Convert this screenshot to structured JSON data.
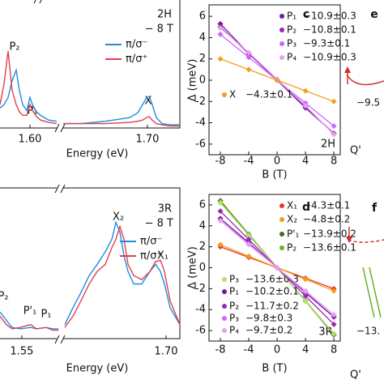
{
  "chart_data": [
    {
      "type": "line",
      "x_label": "Energy (eV)",
      "annotations": [
        "2H",
        "− 8 T",
        "P₂",
        "P₁",
        "X"
      ],
      "x": [
        1.5745,
        1.5779,
        1.5814,
        1.5848,
        1.5883,
        1.591,
        1.5938,
        1.5973,
        1.6,
        1.6021,
        1.6055,
        1.609,
        1.6159,
        1.6228,
        1.6255,
        1.6283,
        1.6435,
        1.6641,
        1.6848,
        1.6917,
        1.6959,
        1.6993,
        1.7014,
        1.7041,
        1.7076,
        1.7124,
        1.7193,
        1.7276
      ],
      "series": [
        {
          "name": "π/σ⁻",
          "color": "#1a8fe0",
          "values": [
            0.16,
            0.19,
            0.25,
            0.39,
            0.48,
            0.31,
            0.19,
            0.14,
            0.25,
            0.19,
            0.13,
            0.1,
            0.06,
            0.05,
            null,
            0.03,
            0.03,
            0.05,
            0.08,
            0.12,
            0.19,
            0.25,
            0.26,
            0.19,
            0.08,
            0.03,
            0.02,
            0.02
          ]
        },
        {
          "name": "π/σ⁺",
          "color": "#e0404e",
          "values": [
            0.19,
            0.36,
            0.64,
            0.31,
            0.19,
            0.13,
            0.1,
            0.1,
            0.19,
            0.14,
            0.09,
            0.06,
            0.04,
            0.03,
            null,
            0.03,
            0.03,
            0.03,
            0.04,
            0.05,
            0.06,
            0.08,
            0.09,
            0.06,
            0.03,
            0.02,
            0.01,
            0.01
          ]
        }
      ],
      "xlim": [
        1.5745,
        1.7276
      ],
      "xticks": [
        {
          "value": 1.6,
          "label": "1.60"
        },
        {
          "value": 1.7,
          "label": "1.70"
        }
      ],
      "ylim": [
        0,
        1
      ]
    },
    {
      "type": "scatter",
      "x_label": "B (T)",
      "y_label": "Δ (meV)",
      "fit_lines": true,
      "annotations": [
        "c",
        "2H"
      ],
      "x": [
        -8,
        -4,
        0,
        4,
        8
      ],
      "series": [
        {
          "name": "P₁",
          "g": "−10.9±0.3",
          "color": "#6a1b9a",
          "values": [
            5.3,
            2.5,
            0,
            -2.6,
            -5.0
          ]
        },
        {
          "name": "P₂",
          "g": "−10.8±0.1",
          "color": "#9c27b0",
          "values": [
            5.0,
            2.5,
            0,
            -2.5,
            -5.0
          ]
        },
        {
          "name": "P₃",
          "g": "−9.3±0.1",
          "color": "#cc66ff",
          "values": [
            4.31,
            2.15,
            0,
            -2.15,
            -4.31
          ]
        },
        {
          "name": "P₄",
          "g": "−10.9±0.3",
          "color": "#e8a0f0",
          "values": [
            4.9,
            2.6,
            0.1,
            -2.4,
            -5.1
          ]
        },
        {
          "name": "X",
          "g": "−4.3±0.1",
          "color": "#f0a020",
          "values": [
            2.0,
            1.0,
            0,
            -1.0,
            -2.0
          ]
        }
      ],
      "xlim": [
        -9.6,
        8.9
      ],
      "xticks": [
        -8,
        -4,
        0,
        4,
        8
      ],
      "ylim": [
        -7,
        7
      ],
      "yticks": [
        -6,
        -4,
        -2,
        0,
        2,
        4,
        6
      ]
    },
    {
      "type": "line",
      "x_label": "Energy (eV)",
      "annotations": [
        "3R",
        "− 8 T",
        "X₂",
        "X₁",
        "P₂",
        "P'₁",
        "P₁"
      ],
      "x": [
        1.5273,
        1.534,
        1.5399,
        1.5484,
        1.5593,
        1.5652,
        1.5753,
        1.5821,
        1.588,
        1.5913,
        1.5947,
        1.6031,
        1.6115,
        1.62,
        1.6284,
        1.6368,
        1.6436,
        1.6478,
        1.652,
        1.6562,
        1.6604,
        1.6663,
        1.6747,
        1.6832,
        1.6891,
        1.6941,
        1.6983,
        1.7042,
        1.7143
      ],
      "series": [
        {
          "name": "π/σ⁻",
          "color": "#1a8fe0",
          "values": [
            0.19,
            0.13,
            0.08,
            0.07,
            0.08,
            0.07,
            0.08,
            0.07,
            0.07,
            null,
            0.1,
            0.22,
            0.33,
            0.45,
            0.53,
            0.62,
            0.71,
            0.83,
            0.76,
            0.59,
            0.48,
            0.39,
            0.39,
            0.48,
            0.53,
            0.48,
            0.39,
            0.22,
            0.1
          ]
        },
        {
          "name": "π/σ⁺",
          "color": "#e0404e",
          "values": [
            0.16,
            0.1,
            0.07,
            0.08,
            0.1,
            0.07,
            0.08,
            0.06,
            0.06,
            null,
            0.08,
            0.16,
            0.27,
            0.39,
            0.48,
            0.53,
            0.65,
            0.71,
            0.8,
            0.71,
            0.53,
            0.45,
            0.42,
            0.48,
            0.55,
            0.56,
            0.48,
            0.27,
            0.1
          ]
        }
      ],
      "xlim": [
        1.5273,
        1.7143
      ],
      "xticks": [
        1.55,
        {
          "value": 1.7,
          "label": "1.70"
        }
      ],
      "ylim": [
        0,
        1
      ]
    },
    {
      "type": "scatter",
      "x_label": "B (T)",
      "y_label": "Δ (meV)",
      "fit_lines": true,
      "annotations": [
        "d",
        "3R"
      ],
      "x": [
        -8,
        -4,
        0,
        4,
        8
      ],
      "series": [
        {
          "name": "X₁",
          "g": "−4.3±0.1",
          "color": "#e53935",
          "values": [
            2.0,
            1.0,
            0,
            -1.0,
            -2.0
          ]
        },
        {
          "name": "X₂",
          "g": "−4.8±0.2",
          "color": "#f39c12",
          "values": [
            2.2,
            1.1,
            0,
            -1.1,
            -2.2
          ]
        },
        {
          "name": "P'₁",
          "g": "−13.9±0.2",
          "color": "#3f6e1a",
          "values": [
            6.4,
            3.2,
            0,
            -3.2,
            -6.4
          ]
        },
        {
          "name": "P₂",
          "g": "−13.6±0.1",
          "color": "#6ab023",
          "values": [
            6.3,
            3.15,
            0,
            -3.15,
            -6.3
          ]
        },
        {
          "name": "P₃",
          "g": "−13.6±0.3",
          "color": "#b5e06b",
          "values": [
            6.2,
            3.1,
            0,
            -3.2,
            -6.3
          ]
        },
        {
          "name": "P₁",
          "g": "−10.2±0.1",
          "color": "#6a1b9a",
          "values": [
            4.7,
            2.4,
            0,
            -2.4,
            -4.7
          ]
        },
        {
          "name": "P₂",
          "g": "−11.7±0.2",
          "color": "#9c27b0",
          "values": [
            5.4,
            2.7,
            0,
            -2.7,
            -5.4
          ]
        },
        {
          "name": "P₃",
          "g": "−9.8±0.3",
          "color": "#cc66ff",
          "values": [
            4.5,
            2.3,
            0,
            -2.3,
            -4.5
          ]
        },
        {
          "name": "P₄",
          "g": "−9.7±0.2",
          "color": "#e8a0f0",
          "values": [
            4.5,
            2.2,
            0,
            -2.2,
            -4.5
          ]
        }
      ],
      "xlim": [
        -9.6,
        8.9
      ],
      "xticks": [
        -8,
        -4,
        0,
        4,
        8
      ],
      "ylim": [
        -7,
        7
      ],
      "yticks": [
        -6,
        -4,
        -2,
        0,
        2,
        4,
        6
      ]
    }
  ],
  "panel_e": {
    "label": "e",
    "energy": "−9.5",
    "valley": "Q'"
  },
  "panel_f": {
    "label": "f",
    "energy": "−13.",
    "valley": "Q'"
  }
}
